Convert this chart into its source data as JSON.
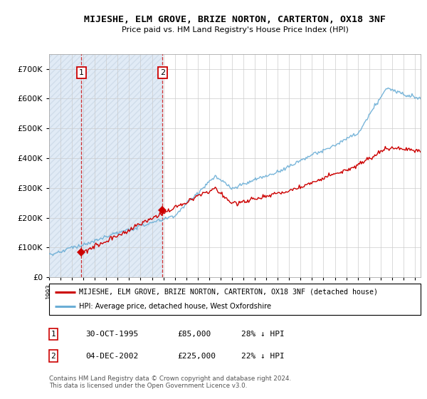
{
  "title": "MIJESHE, ELM GROVE, BRIZE NORTON, CARTERTON, OX18 3NF",
  "subtitle": "Price paid vs. HM Land Registry's House Price Index (HPI)",
  "ylim": [
    0,
    750000
  ],
  "yticks": [
    0,
    100000,
    200000,
    300000,
    400000,
    500000,
    600000,
    700000
  ],
  "ytick_labels": [
    "£0",
    "£100K",
    "£200K",
    "£300K",
    "£400K",
    "£500K",
    "£600K",
    "£700K"
  ],
  "sale1_date_x": 1995.83,
  "sale1_price": 85000,
  "sale2_date_x": 2002.92,
  "sale2_price": 225000,
  "hpi_color": "#6baed6",
  "price_color": "#cc0000",
  "legend_label_price": "MIJESHE, ELM GROVE, BRIZE NORTON, CARTERTON, OX18 3NF (detached house)",
  "legend_label_hpi": "HPI: Average price, detached house, West Oxfordshire",
  "table_row1": [
    "1",
    "30-OCT-1995",
    "£85,000",
    "28% ↓ HPI"
  ],
  "table_row2": [
    "2",
    "04-DEC-2002",
    "£225,000",
    "22% ↓ HPI"
  ],
  "footer": "Contains HM Land Registry data © Crown copyright and database right 2024.\nThis data is licensed under the Open Government Licence v3.0.",
  "xmin": 1993,
  "xmax": 2025.5
}
